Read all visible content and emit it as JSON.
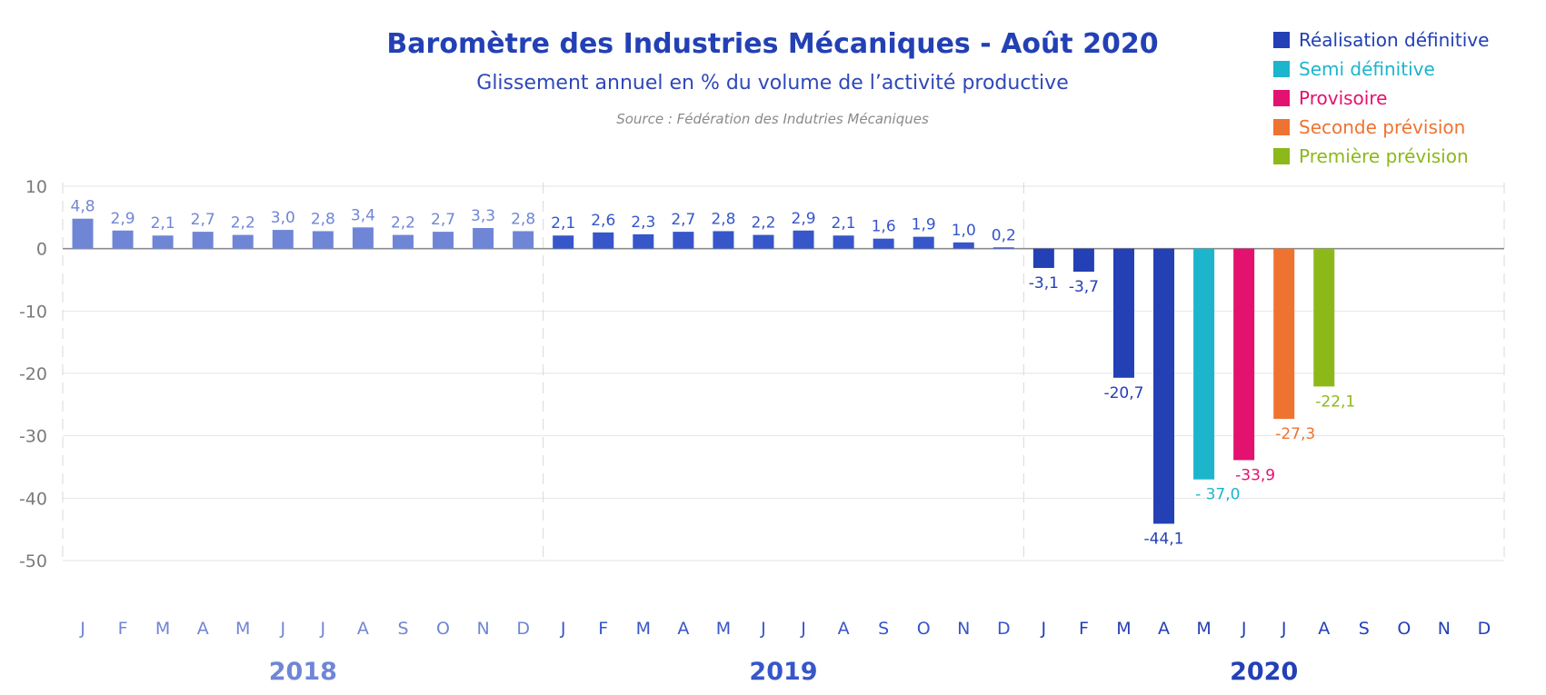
{
  "chart_data": {
    "type": "bar",
    "title": "Baromètre des Industries Mécaniques - Août 2020",
    "subtitle": "Glissement annuel en % du volume de l’activité productive",
    "source": "Source : Fédération des Indutries Mécaniques",
    "ylim": [
      -50,
      10
    ],
    "yticks": [
      10,
      0,
      -10,
      -20,
      -30,
      -40,
      -50
    ],
    "ytick_labels": [
      "10",
      "0",
      "-10",
      "-20",
      "-30",
      "-40",
      "-50"
    ],
    "grid": true,
    "legend_position": "top-right",
    "years": [
      {
        "label": "2018",
        "color": "#6f86d6"
      },
      {
        "label": "2019",
        "color": "#3656c9"
      },
      {
        "label": "2020",
        "color": "#2340b5"
      }
    ],
    "month_labels": [
      "J",
      "F",
      "M",
      "A",
      "M",
      "J",
      "J",
      "A",
      "S",
      "O",
      "N",
      "D"
    ],
    "series": [
      {
        "name": "Réalisation définitive",
        "color": "#2340b5"
      },
      {
        "name": "Semi définitive",
        "color": "#1cb5cc"
      },
      {
        "name": "Provisoire",
        "color": "#e3126e"
      },
      {
        "name": "Seconde prévision",
        "color": "#ee7331"
      },
      {
        "name": "Première prévision",
        "color": "#8db81a"
      }
    ],
    "bars": [
      {
        "year": "2018",
        "month": "J",
        "value": 4.8,
        "label": "4,8",
        "color": "#6f86d6"
      },
      {
        "year": "2018",
        "month": "F",
        "value": 2.9,
        "label": "2,9",
        "color": "#6f86d6"
      },
      {
        "year": "2018",
        "month": "M",
        "value": 2.1,
        "label": "2,1",
        "color": "#6f86d6"
      },
      {
        "year": "2018",
        "month": "A",
        "value": 2.7,
        "label": "2,7",
        "color": "#6f86d6"
      },
      {
        "year": "2018",
        "month": "M",
        "value": 2.2,
        "label": "2,2",
        "color": "#6f86d6"
      },
      {
        "year": "2018",
        "month": "J",
        "value": 3.0,
        "label": "3,0",
        "color": "#6f86d6"
      },
      {
        "year": "2018",
        "month": "J",
        "value": 2.8,
        "label": "2,8",
        "color": "#6f86d6"
      },
      {
        "year": "2018",
        "month": "A",
        "value": 3.4,
        "label": "3,4",
        "color": "#6f86d6"
      },
      {
        "year": "2018",
        "month": "S",
        "value": 2.2,
        "label": "2,2",
        "color": "#6f86d6"
      },
      {
        "year": "2018",
        "month": "O",
        "value": 2.7,
        "label": "2,7",
        "color": "#6f86d6"
      },
      {
        "year": "2018",
        "month": "N",
        "value": 3.3,
        "label": "3,3",
        "color": "#6f86d6"
      },
      {
        "year": "2018",
        "month": "D",
        "value": 2.8,
        "label": "2,8",
        "color": "#6f86d6"
      },
      {
        "year": "2019",
        "month": "J",
        "value": 2.1,
        "label": "2,1",
        "color": "#3656c9"
      },
      {
        "year": "2019",
        "month": "F",
        "value": 2.6,
        "label": "2,6",
        "color": "#3656c9"
      },
      {
        "year": "2019",
        "month": "M",
        "value": 2.3,
        "label": "2,3",
        "color": "#3656c9"
      },
      {
        "year": "2019",
        "month": "A",
        "value": 2.7,
        "label": "2,7",
        "color": "#3656c9"
      },
      {
        "year": "2019",
        "month": "M",
        "value": 2.8,
        "label": "2,8",
        "color": "#3656c9"
      },
      {
        "year": "2019",
        "month": "J",
        "value": 2.2,
        "label": "2,2",
        "color": "#3656c9"
      },
      {
        "year": "2019",
        "month": "J",
        "value": 2.9,
        "label": "2,9",
        "color": "#3656c9"
      },
      {
        "year": "2019",
        "month": "A",
        "value": 2.1,
        "label": "2,1",
        "color": "#3656c9"
      },
      {
        "year": "2019",
        "month": "S",
        "value": 1.6,
        "label": "1,6",
        "color": "#3656c9"
      },
      {
        "year": "2019",
        "month": "O",
        "value": 1.9,
        "label": "1,9",
        "color": "#3656c9"
      },
      {
        "year": "2019",
        "month": "N",
        "value": 1.0,
        "label": "1,0",
        "color": "#3656c9"
      },
      {
        "year": "2019",
        "month": "D",
        "value": 0.2,
        "label": "0,2",
        "color": "#3656c9"
      },
      {
        "year": "2020",
        "month": "J",
        "value": -3.1,
        "label": "-3,1",
        "color": "#2340b5"
      },
      {
        "year": "2020",
        "month": "F",
        "value": -3.7,
        "label": "-3,7",
        "color": "#2340b5"
      },
      {
        "year": "2020",
        "month": "M",
        "value": -20.7,
        "label": "-20,7",
        "color": "#2340b5"
      },
      {
        "year": "2020",
        "month": "A",
        "value": -44.1,
        "label": "-44,1",
        "color": "#2340b5"
      },
      {
        "year": "2020",
        "month": "M",
        "value": -37.0,
        "label": "- 37,0",
        "color": "#1cb5cc"
      },
      {
        "year": "2020",
        "month": "J",
        "value": -33.9,
        "label": "-33,9",
        "color": "#e3126e"
      },
      {
        "year": "2020",
        "month": "J",
        "value": -27.3,
        "label": "-27,3",
        "color": "#ee7331"
      },
      {
        "year": "2020",
        "month": "A",
        "value": -22.1,
        "label": "-22,1",
        "color": "#8db81a"
      },
      {
        "year": "2020",
        "month": "S",
        "value": null,
        "label": "",
        "color": "#2340b5"
      },
      {
        "year": "2020",
        "month": "O",
        "value": null,
        "label": "",
        "color": "#2340b5"
      },
      {
        "year": "2020",
        "month": "N",
        "value": null,
        "label": "",
        "color": "#2340b5"
      },
      {
        "year": "2020",
        "month": "D",
        "value": null,
        "label": "",
        "color": "#2340b5"
      }
    ]
  }
}
